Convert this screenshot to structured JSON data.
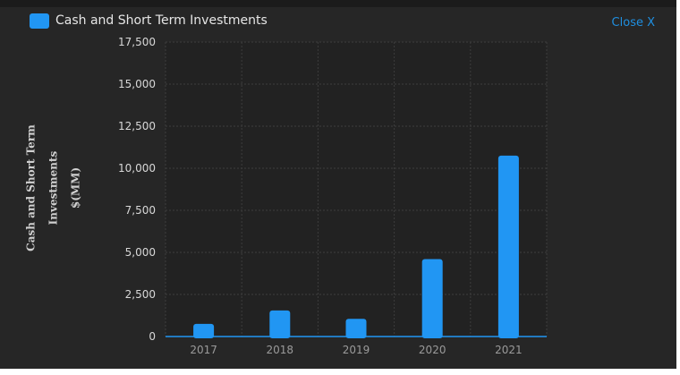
{
  "legend": {
    "label": "Cash and Short Term Investments",
    "color": "#2196f3"
  },
  "close_label": "Close X",
  "chart_data": {
    "type": "bar",
    "categories": [
      "2017",
      "2018",
      "2019",
      "2020",
      "2021"
    ],
    "series": [
      {
        "name": "Cash and Short Term Investments",
        "values": [
          750,
          1550,
          1050,
          4600,
          10750
        ],
        "color": "#2196f3"
      }
    ],
    "ylabel_lines": [
      "Cash and Short Term",
      "Investments",
      "$(MM)"
    ],
    "ylim": [
      0,
      17500
    ],
    "yticks": [
      0,
      2500,
      5000,
      7500,
      10000,
      12500,
      15000,
      17500
    ],
    "ytick_labels": [
      "0",
      "2,500",
      "5,000",
      "7,500",
      "10,000",
      "12,500",
      "15,000",
      "17,500"
    ],
    "grid": true,
    "legend_position": "top-left"
  }
}
